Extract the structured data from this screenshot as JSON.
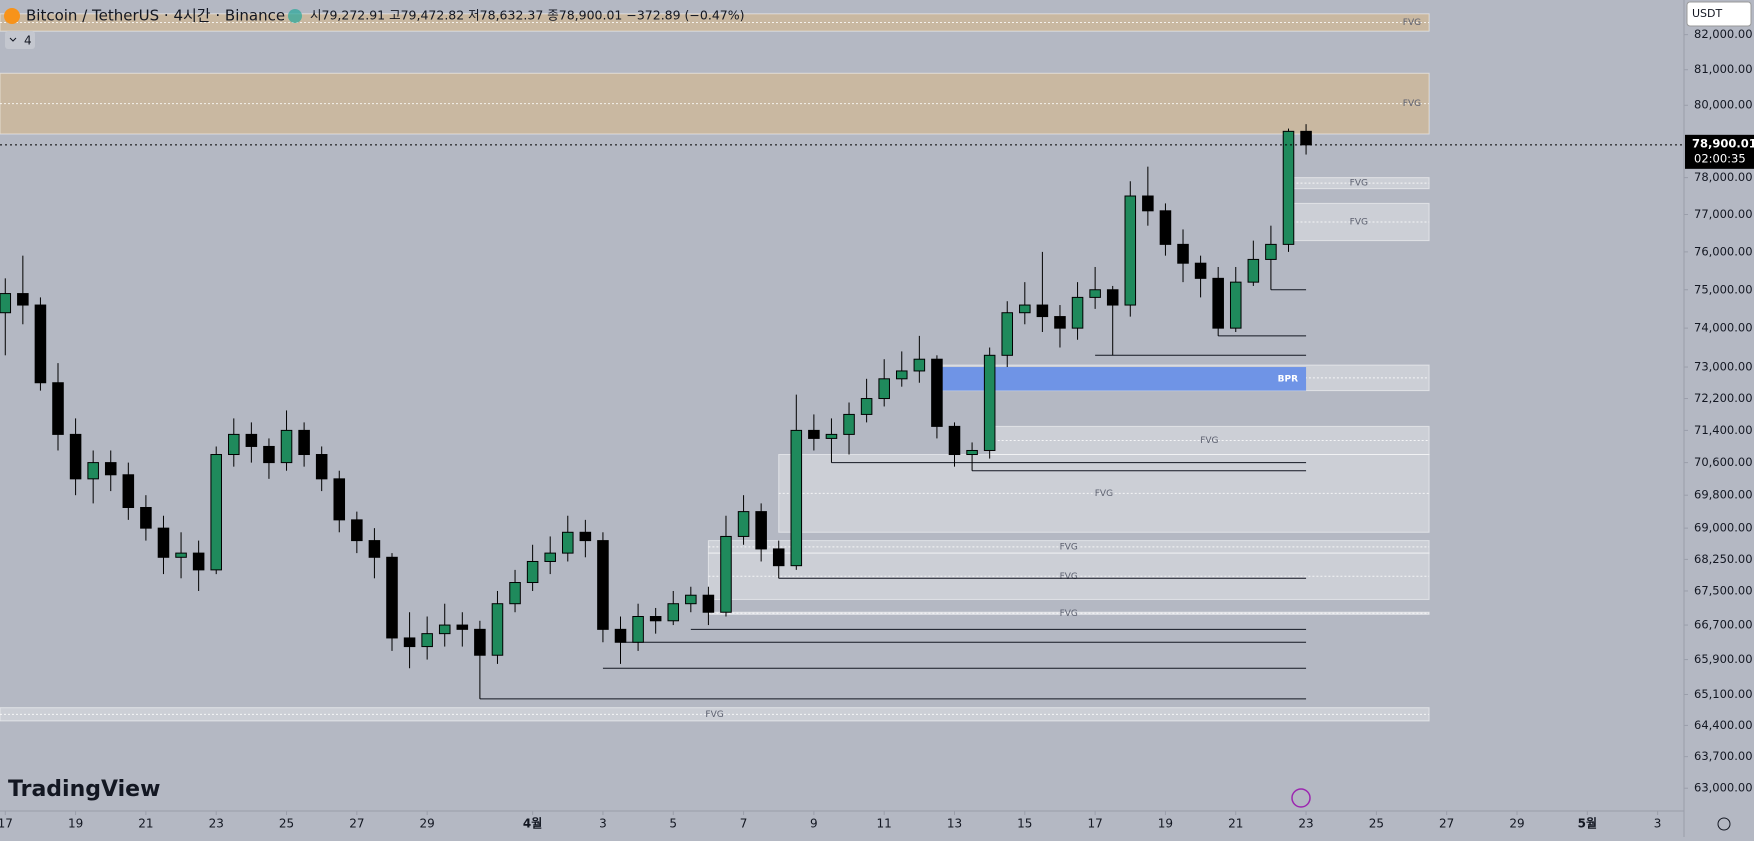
{
  "header": {
    "title": "Bitcoin / TetherUS · 4시간 · Binance",
    "ohlc": "시79,272.91 고79,472.82 저78,632.37 종78,900.01 −372.89 (−0.47%)",
    "indicator_count": "4",
    "currency": "USDT",
    "logo": "TradingView"
  },
  "chart_data": {
    "type": "candlestick",
    "log": true,
    "grid": false,
    "up_color": "#1f8a5c",
    "down_color": "#000000",
    "ylim": [
      62500,
      83000
    ],
    "xlim": [
      -0.3,
      95.5
    ],
    "yticks": [
      {
        "value": 82000,
        "label": "82,000.00"
      },
      {
        "value": 81000,
        "label": "81,000.00"
      },
      {
        "value": 80000,
        "label": "80,000.00"
      },
      {
        "value": 78000,
        "label": "78,000.00"
      },
      {
        "value": 77000,
        "label": "77,000.00"
      },
      {
        "value": 76000,
        "label": "76,000.00"
      },
      {
        "value": 75000,
        "label": "75,000.00"
      },
      {
        "value": 74000,
        "label": "74,000.00"
      },
      {
        "value": 73000,
        "label": "73,000.00"
      },
      {
        "value": 72200,
        "label": "72,200.00"
      },
      {
        "value": 71400,
        "label": "71,400.00"
      },
      {
        "value": 70600,
        "label": "70,600.00"
      },
      {
        "value": 69800,
        "label": "69,800.00"
      },
      {
        "value": 69000,
        "label": "69,000.00"
      },
      {
        "value": 68250,
        "label": "68,250.00"
      },
      {
        "value": 67500,
        "label": "67,500.00"
      },
      {
        "value": 66700,
        "label": "66,700.00"
      },
      {
        "value": 65900,
        "label": "65,900.00"
      },
      {
        "value": 65100,
        "label": "65,100.00"
      },
      {
        "value": 64400,
        "label": "64,400.00"
      },
      {
        "value": 63700,
        "label": "63,700.00"
      },
      {
        "value": 63000,
        "label": "63,000.00"
      }
    ],
    "xticks": [
      {
        "value": 0,
        "label": "17"
      },
      {
        "value": 4,
        "label": "19"
      },
      {
        "value": 8,
        "label": "21"
      },
      {
        "value": 12,
        "label": "23"
      },
      {
        "value": 16,
        "label": "25"
      },
      {
        "value": 20,
        "label": "27"
      },
      {
        "value": 24,
        "label": "29"
      },
      {
        "value": 30,
        "label": "4월"
      },
      {
        "value": 34,
        "label": "3"
      },
      {
        "value": 38,
        "label": "5"
      },
      {
        "value": 42,
        "label": "7"
      },
      {
        "value": 46,
        "label": "9"
      },
      {
        "value": 50,
        "label": "11"
      },
      {
        "value": 54,
        "label": "13"
      },
      {
        "value": 58,
        "label": "15"
      },
      {
        "value": 62,
        "label": "17"
      },
      {
        "value": 66,
        "label": "19"
      },
      {
        "value": 70,
        "label": "21"
      },
      {
        "value": 74,
        "label": "23"
      },
      {
        "value": 78,
        "label": "25"
      },
      {
        "value": 82,
        "label": "27"
      },
      {
        "value": 86,
        "label": "29"
      },
      {
        "value": 90,
        "label": "5월"
      },
      {
        "value": 94,
        "label": "3"
      }
    ],
    "open": [
      74400,
      74900,
      74600,
      72600,
      71300,
      70200,
      70600,
      70300,
      69500,
      69000,
      68300,
      68400,
      68000,
      70800,
      71300,
      71000,
      70600,
      71400,
      70800,
      70200,
      69200,
      68700,
      68300,
      66400,
      66200,
      66500,
      66700,
      66600,
      66000,
      67200,
      67700,
      68200,
      68400,
      68900,
      68700,
      66600,
      66300,
      66900,
      66800,
      67200,
      67400,
      67000,
      68800,
      69400,
      68500,
      68100,
      71400,
      71200,
      71300,
      71800,
      72200,
      72700,
      72900,
      73200,
      71500,
      70800,
      70900,
      73300,
      74400,
      74600,
      74300,
      74000,
      74800,
      75000,
      74600,
      77500,
      77100,
      76200,
      75700,
      75300,
      74000,
      75200,
      75800,
      76200,
      79272.91
    ],
    "high": [
      75300,
      75900,
      74800,
      73100,
      71700,
      70900,
      70900,
      70600,
      69800,
      69300,
      68900,
      68700,
      71000,
      71700,
      71600,
      71200,
      71900,
      71600,
      71000,
      70400,
      69400,
      69000,
      68400,
      67000,
      66900,
      67200,
      67000,
      66800,
      67500,
      68000,
      68600,
      68800,
      69300,
      69200,
      68900,
      66900,
      67200,
      67100,
      67500,
      67600,
      67600,
      69300,
      69800,
      69600,
      68700,
      72300,
      71800,
      71700,
      72100,
      72700,
      73200,
      73400,
      73800,
      73300,
      71600,
      71100,
      73500,
      74700,
      75200,
      76000,
      74600,
      75200,
      75600,
      75100,
      77900,
      78300,
      77300,
      76600,
      75900,
      75600,
      75600,
      76300,
      76700,
      79350,
      79472.82
    ],
    "low": [
      73300,
      74100,
      72400,
      70900,
      69800,
      69600,
      69900,
      69200,
      68700,
      67900,
      67800,
      67500,
      67900,
      70500,
      70600,
      70200,
      70400,
      70500,
      69900,
      68900,
      68400,
      67800,
      66100,
      65700,
      65900,
      66200,
      66200,
      65000,
      65800,
      67000,
      67500,
      67900,
      68200,
      68300,
      66300,
      65800,
      66100,
      66500,
      66700,
      67000,
      66700,
      66900,
      68600,
      68200,
      67800,
      68000,
      70900,
      70600,
      70800,
      71600,
      72000,
      72500,
      72600,
      71200,
      70500,
      70400,
      70700,
      73000,
      74100,
      73900,
      73500,
      73700,
      74500,
      73300,
      74300,
      76700,
      75900,
      75200,
      74800,
      73800,
      73900,
      75100,
      75000,
      76000,
      78632.37
    ],
    "close": [
      74900,
      74600,
      72600,
      71300,
      70200,
      70600,
      70300,
      69500,
      69000,
      68300,
      68400,
      68000,
      70800,
      71300,
      71000,
      70600,
      71400,
      70800,
      70200,
      69200,
      68700,
      68300,
      66400,
      66200,
      66500,
      66700,
      66600,
      66000,
      67200,
      67700,
      68200,
      68400,
      68900,
      68700,
      66600,
      66300,
      66900,
      66800,
      67200,
      67400,
      67000,
      68800,
      69400,
      68500,
      68100,
      71400,
      71200,
      71300,
      71800,
      72200,
      72700,
      72900,
      73200,
      71500,
      70800,
      70900,
      73300,
      74400,
      74600,
      74300,
      74000,
      74800,
      75000,
      74600,
      77500,
      77100,
      76200,
      75700,
      75300,
      74000,
      75200,
      75800,
      76200,
      79272.91,
      78900.01
    ],
    "zones": [
      {
        "label": "FVG",
        "low": 82100,
        "high": 82600,
        "to": 81,
        "color": "#e3b878",
        "label_side": "right"
      },
      {
        "label": "FVG",
        "low": 79200,
        "high": 80900,
        "to": 81,
        "color": "#e3b878",
        "label_side": "right"
      },
      {
        "label": "FVG",
        "low": 77700,
        "high": 78000,
        "from": 73,
        "to": 81,
        "color": "#e8eaee"
      },
      {
        "label": "FVG",
        "low": 76300,
        "high": 77300,
        "from": 73,
        "to": 81,
        "color": "#e8eaee"
      },
      {
        "label": "FVG",
        "low": 72400,
        "high": 73050,
        "from": 53,
        "to": 81,
        "color": "#e8eaee"
      },
      {
        "label": "BPR",
        "low": 72400,
        "high": 73000,
        "from": 53,
        "to": 74,
        "color": "#6f94e6",
        "label_side": "right"
      },
      {
        "label": "FVG",
        "low": 70800,
        "high": 71500,
        "from": 56,
        "to": 81,
        "color": "#e8eaee"
      },
      {
        "label": "FVG",
        "low": 68900,
        "high": 70800,
        "from": 44,
        "to": 81,
        "color": "#e8eaee"
      },
      {
        "label": "FVG",
        "low": 68400,
        "high": 68700,
        "from": 40,
        "to": 81,
        "color": "#e8eaee"
      },
      {
        "label": "FVG",
        "low": 67300,
        "high": 68400,
        "from": 40,
        "to": 81,
        "color": "#e8eaee"
      },
      {
        "label": "FVG",
        "low": 66950,
        "high": 67000,
        "from": 40,
        "to": 81,
        "color": "#ffffff"
      },
      {
        "label": "FVG",
        "low": 64500,
        "high": 64800,
        "to": 81,
        "color": "#e8eaee"
      }
    ],
    "levels": [
      {
        "value": 75000,
        "from": 72
      },
      {
        "value": 73800,
        "from": 69
      },
      {
        "value": 73300,
        "from": 62
      },
      {
        "value": 70600,
        "from": 47
      },
      {
        "value": 70400,
        "from": 55
      },
      {
        "value": 67800,
        "from": 44
      },
      {
        "value": 66600,
        "from": 39
      },
      {
        "value": 66300,
        "from": 35
      },
      {
        "value": 65700,
        "from": 34
      },
      {
        "value": 65000,
        "from": 27
      }
    ],
    "last_price": {
      "value": 78900.01,
      "label": "78,900.01"
    },
    "countdown": "02:00:35"
  }
}
